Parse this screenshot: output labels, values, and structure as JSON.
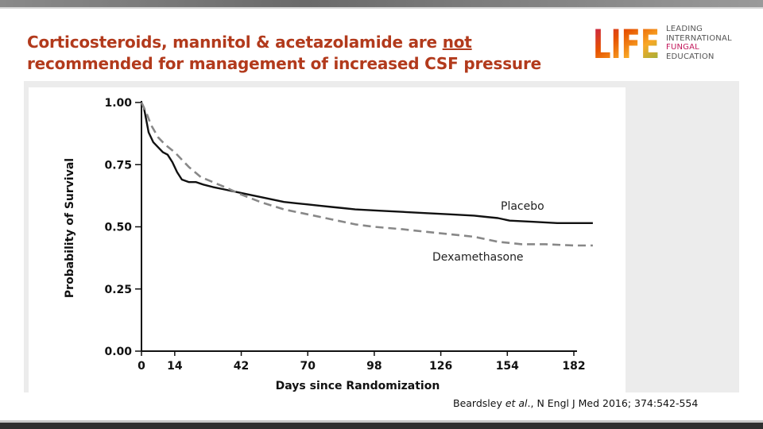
{
  "slide": {
    "title_part1": "Corticosteroids, mannitol & acetazolamide are ",
    "title_emph": "not",
    "title_part2": "recommended for management of increased CSF pressure",
    "citation_authors": "Beardsley ",
    "citation_etal": "et al",
    "citation_rest": "., N Engl J Med 2016; 374:542-554"
  },
  "logo": {
    "letters": "LIFE",
    "line1": "LEADING",
    "line2": "INTERNATIONAL",
    "line3": "FUNGAL",
    "line4": "EDUCATION",
    "colors": [
      "#c2185b",
      "#e65100",
      "#f9a825",
      "#7cb342"
    ]
  },
  "chart_data": {
    "type": "line",
    "xlabel": "Days since Randomization",
    "ylabel": "Probability of Survival",
    "xlim": [
      0,
      182
    ],
    "ylim": [
      0,
      1
    ],
    "xticks": [
      "0",
      "14",
      "42",
      "70",
      "98",
      "126",
      "154",
      "182"
    ],
    "yticks": [
      "0.00",
      "0.25",
      "0.50",
      "0.75",
      "1.00"
    ],
    "grid": false,
    "series": [
      {
        "name": "Placebo",
        "style": "solid",
        "color": "#111111",
        "points": [
          [
            0,
            1.0
          ],
          [
            1,
            0.98
          ],
          [
            2,
            0.93
          ],
          [
            3,
            0.88
          ],
          [
            5,
            0.84
          ],
          [
            7,
            0.82
          ],
          [
            9,
            0.8
          ],
          [
            11,
            0.79
          ],
          [
            13,
            0.76
          ],
          [
            15,
            0.72
          ],
          [
            17,
            0.69
          ],
          [
            20,
            0.68
          ],
          [
            23,
            0.68
          ],
          [
            26,
            0.67
          ],
          [
            30,
            0.66
          ],
          [
            35,
            0.65
          ],
          [
            40,
            0.64
          ],
          [
            45,
            0.63
          ],
          [
            50,
            0.62
          ],
          [
            55,
            0.61
          ],
          [
            60,
            0.6
          ],
          [
            65,
            0.595
          ],
          [
            70,
            0.59
          ],
          [
            75,
            0.585
          ],
          [
            80,
            0.58
          ],
          [
            85,
            0.575
          ],
          [
            90,
            0.57
          ],
          [
            100,
            0.565
          ],
          [
            110,
            0.56
          ],
          [
            120,
            0.555
          ],
          [
            130,
            0.55
          ],
          [
            140,
            0.545
          ],
          [
            145,
            0.54
          ],
          [
            150,
            0.535
          ],
          [
            155,
            0.525
          ],
          [
            165,
            0.52
          ],
          [
            175,
            0.515
          ],
          [
            182,
            0.515
          ],
          [
            190,
            0.515
          ]
        ]
      },
      {
        "name": "Dexamethasone",
        "style": "dashed",
        "color": "#888888",
        "points": [
          [
            0,
            1.0
          ],
          [
            2,
            0.96
          ],
          [
            4,
            0.91
          ],
          [
            7,
            0.86
          ],
          [
            10,
            0.83
          ],
          [
            14,
            0.8
          ],
          [
            17,
            0.77
          ],
          [
            20,
            0.74
          ],
          [
            25,
            0.7
          ],
          [
            30,
            0.68
          ],
          [
            35,
            0.66
          ],
          [
            42,
            0.63
          ],
          [
            50,
            0.6
          ],
          [
            60,
            0.57
          ],
          [
            70,
            0.55
          ],
          [
            80,
            0.53
          ],
          [
            90,
            0.51
          ],
          [
            98,
            0.5
          ],
          [
            110,
            0.49
          ],
          [
            120,
            0.48
          ],
          [
            130,
            0.47
          ],
          [
            140,
            0.46
          ],
          [
            150,
            0.44
          ],
          [
            160,
            0.43
          ],
          [
            170,
            0.43
          ],
          [
            182,
            0.425
          ],
          [
            190,
            0.425
          ]
        ]
      }
    ],
    "annotations": [
      "Placebo",
      "Dexamethasone"
    ]
  }
}
